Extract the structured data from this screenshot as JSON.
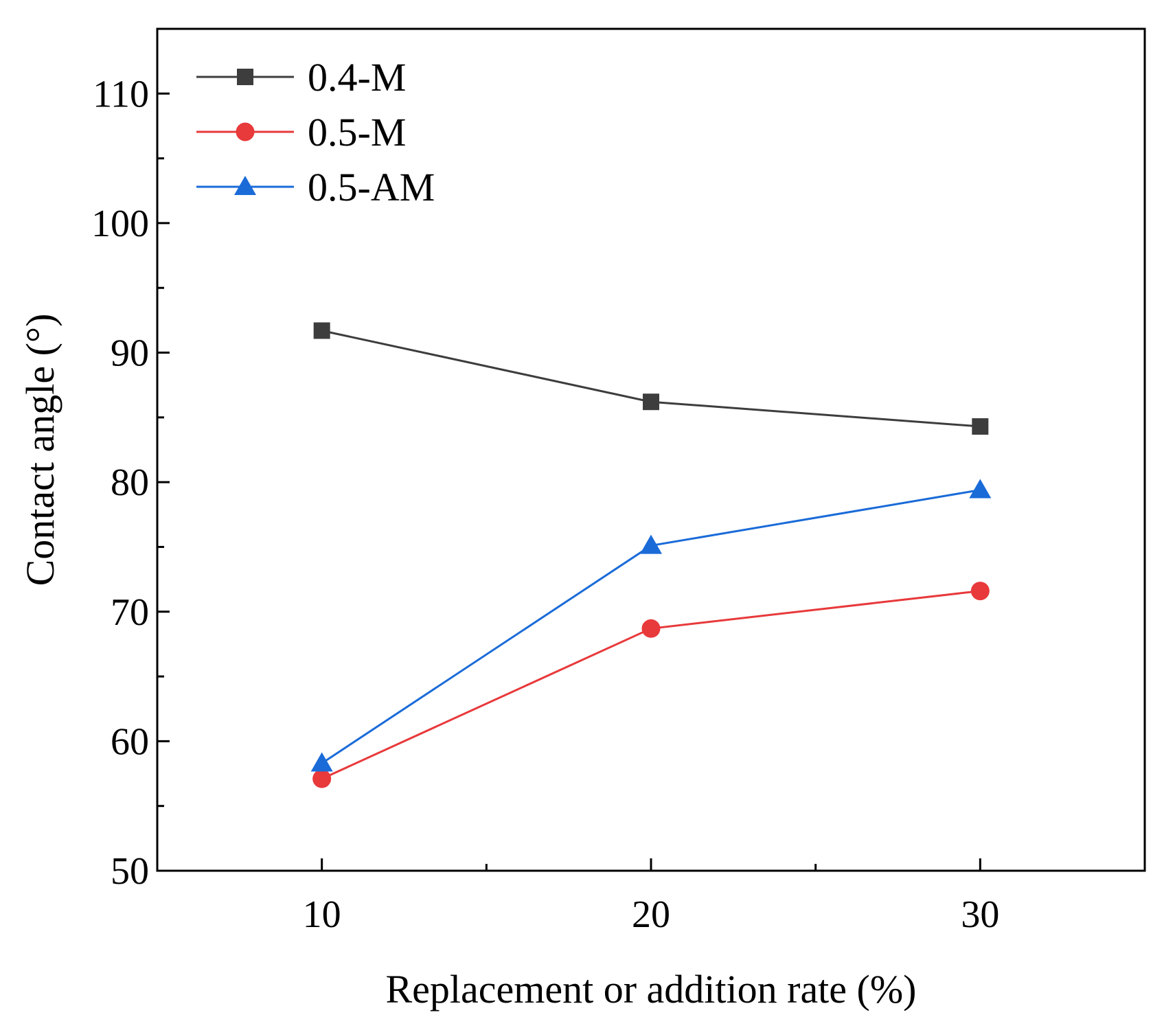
{
  "chart_data": {
    "type": "line",
    "title": "",
    "xlabel": "Replacement or addition rate (%)",
    "ylabel": "Contact angle (°)",
    "x": [
      10,
      20,
      30
    ],
    "xlim": [
      5,
      35
    ],
    "ylim": [
      50,
      115
    ],
    "xticks": [
      10,
      20,
      30
    ],
    "xminor_ticks": [
      15,
      25
    ],
    "yticks": [
      50,
      60,
      70,
      80,
      90,
      100,
      110
    ],
    "yminor_ticks": [
      55,
      65,
      75,
      85,
      95,
      105
    ],
    "grid": false,
    "legend_position": "top-left",
    "series": [
      {
        "name": "0.4-M",
        "values": [
          91.7,
          86.2,
          84.3
        ],
        "color": "#3d3d3d",
        "marker": "square"
      },
      {
        "name": "0.5-M",
        "values": [
          57.1,
          68.7,
          71.6
        ],
        "color": "#e8393b",
        "marker": "circle"
      },
      {
        "name": "0.5-AM",
        "values": [
          58.3,
          75.1,
          79.4
        ],
        "color": "#1a6bd8",
        "marker": "triangle"
      }
    ]
  }
}
